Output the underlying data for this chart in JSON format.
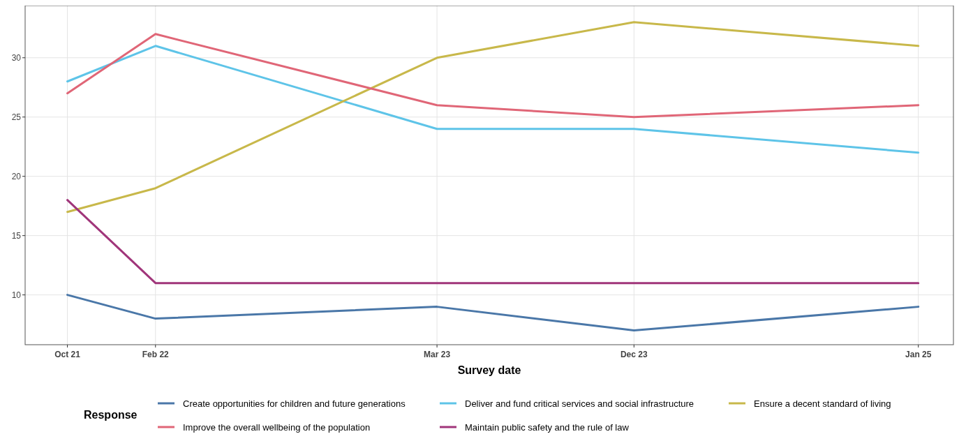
{
  "chart_data": {
    "type": "line",
    "xlabel": "Survey date",
    "legend_title": "Response",
    "legend": "bottom",
    "grid": true,
    "line_style": "solid",
    "marker": "none",
    "x": [
      "2021-10",
      "2022-02",
      "2023-03",
      "2023-12",
      "2025-01"
    ],
    "xlim": [
      "2021-08-03",
      "2025-02-19"
    ],
    "xticks": [
      {
        "value": "2021-10",
        "label": "Oct 21"
      },
      {
        "value": "2022-02",
        "label": "Feb 22"
      },
      {
        "value": "2023-03",
        "label": "Mar 23"
      },
      {
        "value": "2023-12",
        "label": "Dec 23"
      },
      {
        "value": "2025-01",
        "label": "Jan 25"
      }
    ],
    "ylim": [
      5.8,
      34.4
    ],
    "yticks": [
      10,
      15,
      20,
      25,
      30
    ],
    "series": [
      {
        "name": "Create opportunities for children and future generations",
        "color": "#4a77a8",
        "values": [
          10,
          8,
          9,
          7,
          9
        ]
      },
      {
        "name": "Deliver and fund critical services and social infrastructure",
        "color": "#5ec4e8",
        "values": [
          28,
          31,
          24,
          24,
          22
        ]
      },
      {
        "name": "Ensure a decent standard of living",
        "color": "#c8b84a",
        "values": [
          17,
          19,
          30,
          33,
          31
        ]
      },
      {
        "name": "Improve the overall wellbeing of the population",
        "color": "#e06677",
        "values": [
          27,
          32,
          26,
          25,
          26
        ]
      },
      {
        "name": "Maintain public safety and the rule of law",
        "color": "#a0357a",
        "values": [
          18,
          11,
          11,
          11,
          11
        ]
      }
    ]
  }
}
